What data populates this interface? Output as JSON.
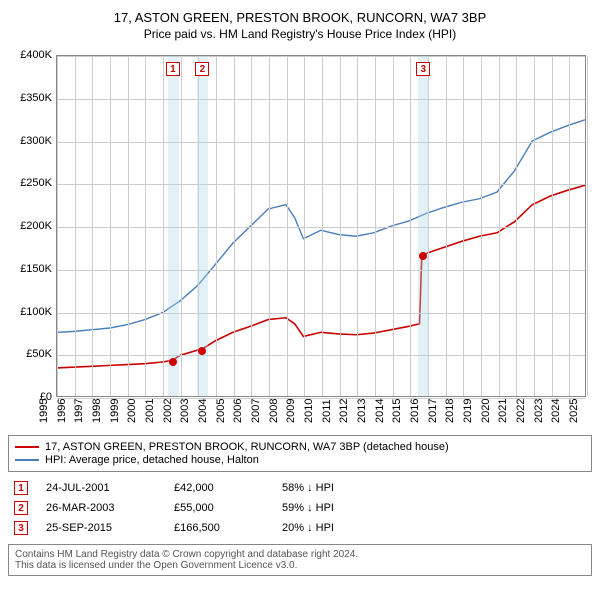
{
  "title": "17, ASTON GREEN, PRESTON BROOK, RUNCORN, WA7 3BP",
  "subtitle": "Price paid vs. HM Land Registry's House Price Index (HPI)",
  "chart": {
    "type": "line",
    "background_color": "#ffffff",
    "grid_color": "#cccccc",
    "axis_color": "#888888",
    "x": {
      "min": 1995,
      "max": 2025,
      "step": 1
    },
    "y": {
      "min": 0,
      "max": 400000,
      "step": 50000,
      "prefix": "£",
      "suffix": "K",
      "divisor": 1000
    },
    "vertical_bands": [
      {
        "from": 2001.3,
        "to": 2001.9,
        "color": "rgba(173,216,230,0.35)"
      },
      {
        "from": 2002.95,
        "to": 2003.55,
        "color": "rgba(173,216,230,0.35)"
      },
      {
        "from": 2015.45,
        "to": 2016.05,
        "color": "rgba(173,216,230,0.35)"
      }
    ],
    "series": [
      {
        "name": "property",
        "label": "17, ASTON GREEN, PRESTON BROOK, RUNCORN, WA7 3BP (detached house)",
        "color": "#cc0000",
        "line_width": 1.6,
        "points": [
          [
            1995,
            33000
          ],
          [
            1996,
            34000
          ],
          [
            1997,
            35000
          ],
          [
            1998,
            36000
          ],
          [
            1999,
            37000
          ],
          [
            2000,
            38000
          ],
          [
            2001,
            40000
          ],
          [
            2001.56,
            42000
          ],
          [
            2002,
            48000
          ],
          [
            2003,
            54000
          ],
          [
            2003.23,
            55000
          ],
          [
            2004,
            65000
          ],
          [
            2005,
            75000
          ],
          [
            2006,
            82000
          ],
          [
            2007,
            90000
          ],
          [
            2008,
            92000
          ],
          [
            2008.5,
            85000
          ],
          [
            2009,
            70000
          ],
          [
            2010,
            75000
          ],
          [
            2011,
            73000
          ],
          [
            2012,
            72000
          ],
          [
            2013,
            74000
          ],
          [
            2014,
            78000
          ],
          [
            2015,
            82000
          ],
          [
            2015.6,
            85000
          ],
          [
            2015.73,
            166500
          ],
          [
            2016,
            168000
          ],
          [
            2017,
            175000
          ],
          [
            2018,
            182000
          ],
          [
            2019,
            188000
          ],
          [
            2020,
            192000
          ],
          [
            2021,
            205000
          ],
          [
            2022,
            225000
          ],
          [
            2023,
            235000
          ],
          [
            2024,
            242000
          ],
          [
            2025,
            248000
          ]
        ]
      },
      {
        "name": "hpi",
        "label": "HPI: Average price, detached house, Halton",
        "color": "#4a7ebb",
        "line_width": 1.4,
        "points": [
          [
            1995,
            75000
          ],
          [
            1996,
            76000
          ],
          [
            1997,
            78000
          ],
          [
            1998,
            80000
          ],
          [
            1999,
            84000
          ],
          [
            2000,
            90000
          ],
          [
            2001,
            98000
          ],
          [
            2002,
            112000
          ],
          [
            2003,
            130000
          ],
          [
            2004,
            155000
          ],
          [
            2005,
            180000
          ],
          [
            2006,
            200000
          ],
          [
            2007,
            220000
          ],
          [
            2008,
            225000
          ],
          [
            2008.5,
            210000
          ],
          [
            2009,
            185000
          ],
          [
            2010,
            195000
          ],
          [
            2011,
            190000
          ],
          [
            2012,
            188000
          ],
          [
            2013,
            192000
          ],
          [
            2014,
            200000
          ],
          [
            2015,
            206000
          ],
          [
            2016,
            215000
          ],
          [
            2017,
            222000
          ],
          [
            2018,
            228000
          ],
          [
            2019,
            232000
          ],
          [
            2020,
            240000
          ],
          [
            2021,
            265000
          ],
          [
            2022,
            300000
          ],
          [
            2023,
            310000
          ],
          [
            2024,
            318000
          ],
          [
            2025,
            325000
          ]
        ]
      }
    ],
    "sale_markers": [
      {
        "n": "1",
        "x": 2001.56,
        "y_box": 385000,
        "y_dot": 42000
      },
      {
        "n": "2",
        "x": 2003.23,
        "y_box": 385000,
        "y_dot": 55000
      },
      {
        "n": "3",
        "x": 2015.73,
        "y_box": 385000,
        "y_dot": 166500
      }
    ]
  },
  "legend": {
    "rows": [
      {
        "color": "#cc0000",
        "label": "17, ASTON GREEN, PRESTON BROOK, RUNCORN, WA7 3BP (detached house)"
      },
      {
        "color": "#4a7ebb",
        "label": "HPI: Average price, detached house, Halton"
      }
    ]
  },
  "sales_table": {
    "rows": [
      {
        "n": "1",
        "date": "24-JUL-2001",
        "price": "£42,000",
        "diff": "58% ↓ HPI"
      },
      {
        "n": "2",
        "date": "26-MAR-2003",
        "price": "£55,000",
        "diff": "59% ↓ HPI"
      },
      {
        "n": "3",
        "date": "25-SEP-2015",
        "price": "£166,500",
        "diff": "20% ↓ HPI"
      }
    ]
  },
  "footer": {
    "line1": "Contains HM Land Registry data © Crown copyright and database right 2024.",
    "line2": "This data is licensed under the Open Government Licence v3.0."
  }
}
